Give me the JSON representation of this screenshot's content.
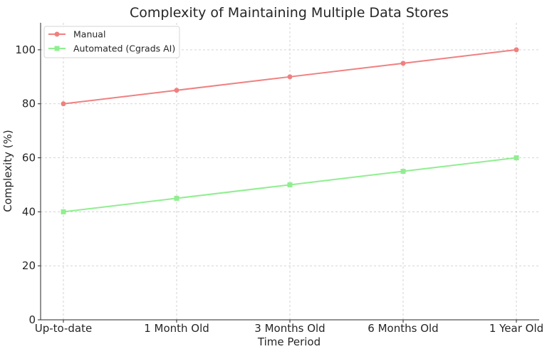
{
  "chart_data": {
    "type": "line",
    "title": "Complexity of Maintaining Multiple Data Stores",
    "xlabel": "Time Period",
    "ylabel": "Complexity (%)",
    "categories": [
      "Up-to-date",
      "1 Month Old",
      "3 Months Old",
      "6 Months Old",
      "1 Year Old"
    ],
    "ylim": [
      0,
      110
    ],
    "yticks": [
      0,
      20,
      40,
      60,
      80,
      100
    ],
    "grid": true,
    "legend_position": "top-left",
    "series": [
      {
        "name": "Manual",
        "values": [
          80,
          85,
          90,
          95,
          100
        ],
        "color": "#f08080",
        "marker": "circle"
      },
      {
        "name": "Automated (Cgrads AI)",
        "values": [
          40,
          45,
          50,
          55,
          60
        ],
        "color": "#90ee90",
        "marker": "square"
      }
    ]
  }
}
